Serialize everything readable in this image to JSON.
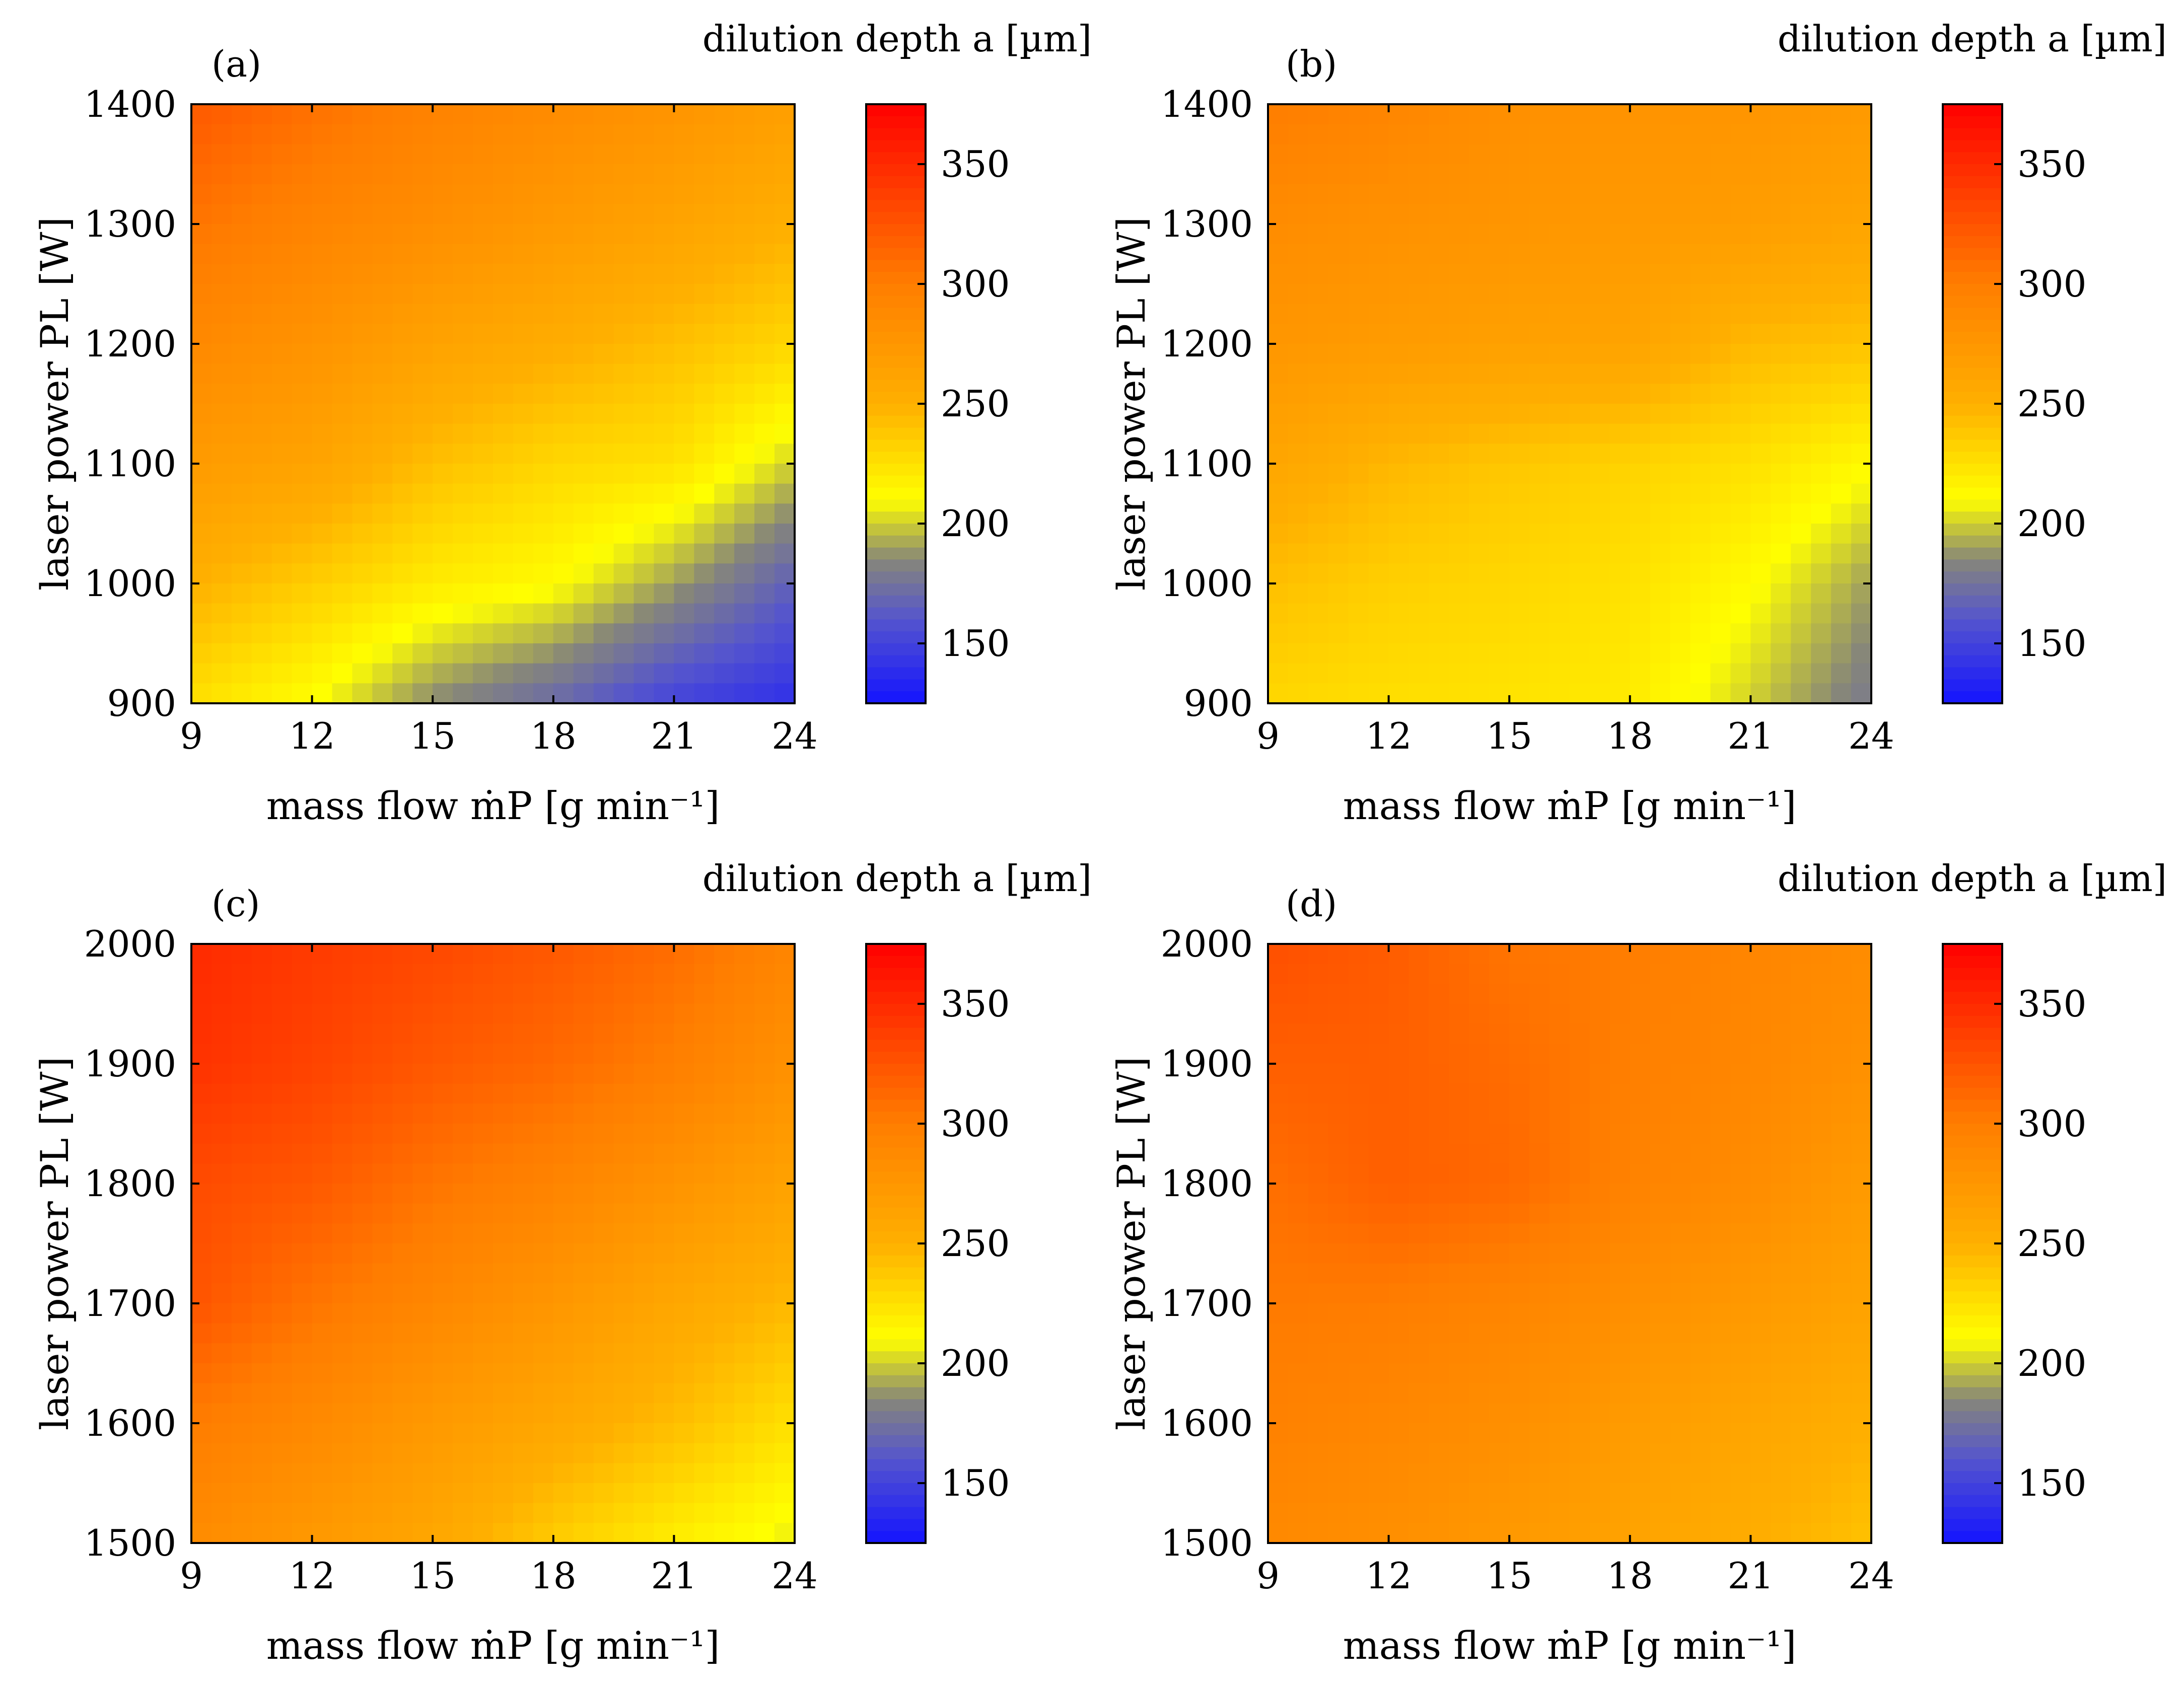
{
  "chart_data": [
    {
      "type": "heatmap",
      "panel_label": "(a)",
      "title": "",
      "colorbar_title": "dilution depth a [µm]",
      "xlabel": "mass flow ṁP [g min⁻¹]",
      "ylabel": "laser power PL [W]",
      "x_ticks": [
        "9",
        "12",
        "15",
        "18",
        "21",
        "24"
      ],
      "y_ticks": [
        "900",
        "1000",
        "1100",
        "1200",
        "1300",
        "1400"
      ],
      "xlim": [
        9,
        24
      ],
      "ylim": [
        900,
        1400
      ],
      "clim": [
        125,
        375
      ],
      "colorbar_ticks": [
        "150",
        "200",
        "250",
        "300",
        "350"
      ],
      "grid_x": [
        9,
        12,
        15,
        18,
        21,
        24
      ],
      "grid_y": [
        900,
        1000,
        1100,
        1200,
        1300,
        1400
      ],
      "z": [
        [
          225,
          210,
          185,
          170,
          150,
          140
        ],
        [
          250,
          235,
          220,
          212,
          190,
          165
        ],
        [
          270,
          262,
          242,
          230,
          225,
          200
        ],
        [
          288,
          278,
          263,
          253,
          242,
          230
        ],
        [
          305,
          293,
          283,
          272,
          262,
          250
        ],
        [
          322,
          308,
          295,
          286,
          277,
          266
        ]
      ]
    },
    {
      "type": "heatmap",
      "panel_label": "(b)",
      "title": "",
      "colorbar_title": "dilution depth a [µm]",
      "xlabel": "mass flow ṁP [g min⁻¹]",
      "ylabel": "laser power PL [W]",
      "x_ticks": [
        "9",
        "12",
        "15",
        "18",
        "21",
        "24"
      ],
      "y_ticks": [
        "900",
        "1000",
        "1100",
        "1200",
        "1300",
        "1400"
      ],
      "xlim": [
        9,
        24
      ],
      "ylim": [
        900,
        1400
      ],
      "clim": [
        125,
        375
      ],
      "colorbar_ticks": [
        "150",
        "200",
        "250",
        "300",
        "350"
      ],
      "grid_x": [
        9,
        12,
        15,
        18,
        21,
        24
      ],
      "grid_y": [
        900,
        1000,
        1100,
        1200,
        1300,
        1400
      ],
      "z": [
        [
          230,
          226,
          224,
          220,
          200,
          178
        ],
        [
          242,
          234,
          230,
          225,
          212,
          190
        ],
        [
          260,
          246,
          238,
          232,
          225,
          212
        ],
        [
          275,
          270,
          265,
          262,
          245,
          240
        ],
        [
          285,
          280,
          276,
          272,
          268,
          260
        ],
        [
          300,
          292,
          282,
          278,
          276,
          272
        ]
      ]
    },
    {
      "type": "heatmap",
      "panel_label": "(c)",
      "title": "",
      "colorbar_title": "dilution depth a [µm]",
      "xlabel": "mass flow ṁP [g min⁻¹]",
      "ylabel": "laser power PL [W]",
      "x_ticks": [
        "9",
        "12",
        "15",
        "18",
        "21",
        "24"
      ],
      "y_ticks": [
        "1500",
        "1600",
        "1700",
        "1800",
        "1900",
        "2000"
      ],
      "xlim": [
        9,
        24
      ],
      "ylim": [
        1500,
        2000
      ],
      "clim": [
        125,
        375
      ],
      "colorbar_ticks": [
        "150",
        "200",
        "250",
        "300",
        "350"
      ],
      "grid_x": [
        9,
        12,
        15,
        18,
        21,
        24
      ],
      "grid_y": [
        1500,
        1600,
        1700,
        1800,
        1900,
        2000
      ],
      "z": [
        [
          285,
          272,
          258,
          235,
          218,
          205
        ],
        [
          300,
          288,
          272,
          258,
          243,
          225
        ],
        [
          325,
          305,
          290,
          275,
          258,
          245
        ],
        [
          330,
          322,
          305,
          293,
          278,
          262
        ],
        [
          345,
          335,
          322,
          312,
          298,
          280
        ],
        [
          350,
          340,
          332,
          322,
          310,
          292
        ]
      ]
    },
    {
      "type": "heatmap",
      "panel_label": "(d)",
      "title": "",
      "colorbar_title": "dilution depth a [µm]",
      "xlabel": "mass flow ṁP [g min⁻¹]",
      "ylabel": "laser power PL [W]",
      "x_ticks": [
        "9",
        "12",
        "15",
        "18",
        "21",
        "24"
      ],
      "y_ticks": [
        "1500",
        "1600",
        "1700",
        "1800",
        "1900",
        "2000"
      ],
      "xlim": [
        9,
        24
      ],
      "ylim": [
        1500,
        2000
      ],
      "clim": [
        125,
        375
      ],
      "colorbar_ticks": [
        "150",
        "200",
        "250",
        "300",
        "350"
      ],
      "grid_x": [
        9,
        12,
        15,
        18,
        21,
        24
      ],
      "grid_y": [
        1500,
        1600,
        1700,
        1800,
        1900,
        2000
      ],
      "z": [
        [
          288,
          282,
          272,
          262,
          252,
          240
        ],
        [
          296,
          290,
          282,
          270,
          260,
          250
        ],
        [
          302,
          300,
          292,
          282,
          272,
          262
        ],
        [
          308,
          318,
          312,
          295,
          285,
          270
        ],
        [
          318,
          318,
          310,
          298,
          290,
          280
        ],
        [
          328,
          320,
          305,
          300,
          292,
          285
        ]
      ]
    }
  ]
}
